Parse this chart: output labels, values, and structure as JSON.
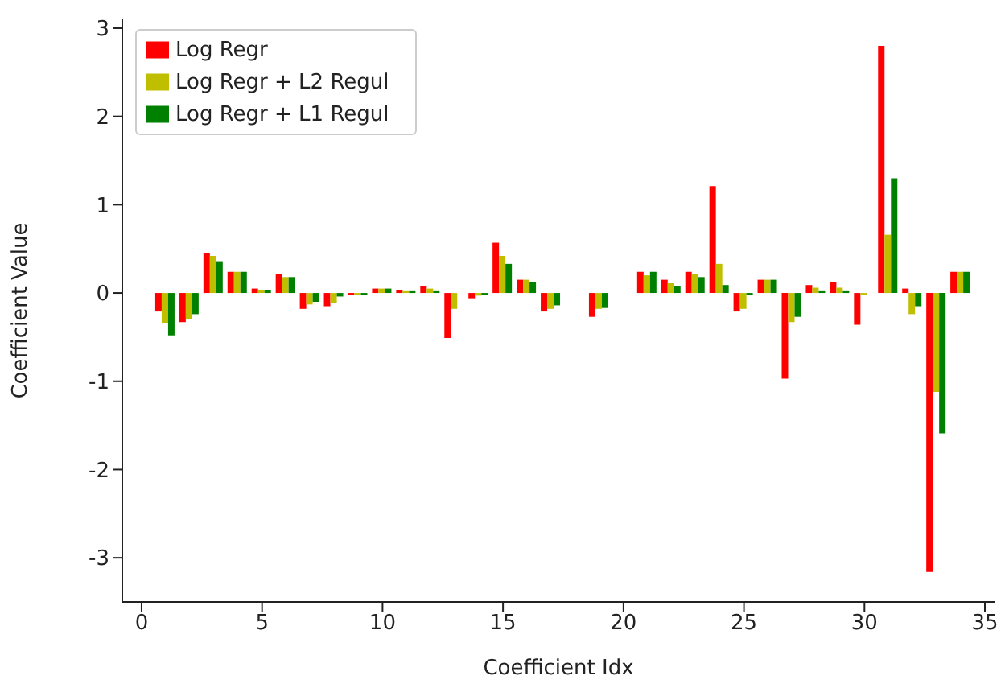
{
  "chart_data": {
    "type": "bar",
    "xlabel": "Coefficient Idx",
    "ylabel": "Coefficient Value",
    "x": [
      1,
      2,
      3,
      4,
      5,
      6,
      7,
      8,
      9,
      10,
      11,
      12,
      13,
      14,
      15,
      16,
      17,
      18,
      19,
      20,
      21,
      22,
      23,
      24,
      25,
      26,
      27,
      28,
      29,
      30,
      31,
      32,
      33,
      34
    ],
    "series": [
      {
        "name": "Log Regr",
        "color": "#ff0000",
        "values": [
          -0.21,
          -0.33,
          0.45,
          0.24,
          0.05,
          0.21,
          -0.18,
          -0.15,
          -0.02,
          0.05,
          0.03,
          0.08,
          -0.51,
          -0.06,
          0.57,
          0.15,
          -0.21,
          null,
          -0.27,
          null,
          0.24,
          0.15,
          0.24,
          1.21,
          -0.21,
          0.15,
          -0.97,
          0.09,
          0.12,
          -0.36,
          2.8,
          0.05,
          -3.16,
          0.24
        ]
      },
      {
        "name": "Log Regr + L2 Regul",
        "color": "#bfbf00",
        "values": [
          -0.34,
          -0.3,
          0.42,
          0.24,
          0.03,
          0.18,
          -0.13,
          -0.11,
          -0.02,
          0.05,
          0.02,
          0.05,
          -0.18,
          -0.03,
          0.42,
          0.15,
          -0.18,
          null,
          -0.18,
          null,
          0.2,
          0.11,
          0.21,
          0.33,
          -0.18,
          0.15,
          -0.33,
          0.06,
          0.06,
          -0.02,
          0.66,
          -0.24,
          -1.12,
          0.24
        ]
      },
      {
        "name": "Log Regr + L1 Regul",
        "color": "#008000",
        "values": [
          -0.48,
          -0.24,
          0.36,
          0.24,
          0.03,
          0.18,
          -0.1,
          -0.04,
          -0.02,
          0.05,
          0.02,
          0.02,
          0,
          -0.02,
          0.33,
          0.12,
          -0.14,
          null,
          -0.17,
          null,
          0.24,
          0.08,
          0.18,
          0.09,
          -0.02,
          0.15,
          -0.27,
          0.02,
          0.02,
          0,
          1.3,
          -0.15,
          -1.59,
          0.24
        ]
      }
    ],
    "xlim": [
      -0.8,
      35.4
    ],
    "xticks": [
      0,
      5,
      10,
      15,
      20,
      25,
      30,
      35
    ],
    "ylim": [
      -3.5,
      3.1
    ],
    "yticks": [
      -3,
      -2,
      -1,
      0,
      1,
      2,
      3
    ],
    "legend": "top left",
    "grid": false
  }
}
